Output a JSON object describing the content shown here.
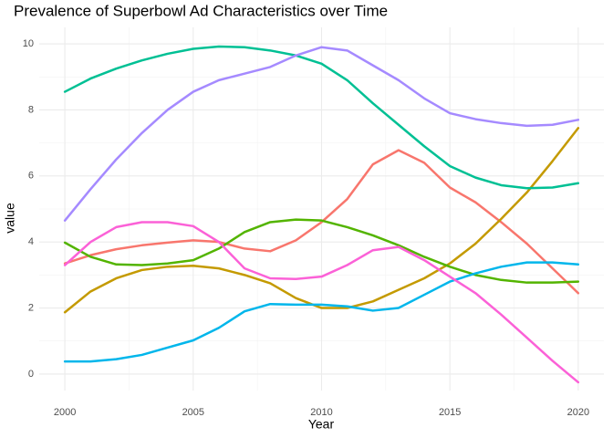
{
  "chart_data": {
    "type": "line",
    "title": "Prevalence of Superbowl Ad Characteristics over Time",
    "x_label": "Year",
    "y_label": "value",
    "x": [
      2000,
      2001,
      2002,
      2003,
      2004,
      2005,
      2006,
      2007,
      2008,
      2009,
      2010,
      2011,
      2012,
      2013,
      2014,
      2015,
      2016,
      2017,
      2018,
      2019,
      2020
    ],
    "xlim": [
      1999,
      2021
    ],
    "xticks": [
      2000,
      2005,
      2010,
      2015,
      2020
    ],
    "ylim": [
      -0.5,
      10.5
    ],
    "yticks": [
      0,
      2,
      4,
      6,
      8,
      10
    ],
    "grid": true,
    "series": [
      {
        "color": "#F8766D",
        "values": [
          3.35,
          3.6,
          3.78,
          3.9,
          3.98,
          4.05,
          4.0,
          3.8,
          3.72,
          4.05,
          4.6,
          5.3,
          6.35,
          6.78,
          6.4,
          5.65,
          5.2,
          4.6,
          3.95,
          3.2,
          2.45
        ]
      },
      {
        "color": "#C49A00",
        "values": [
          1.87,
          2.5,
          2.9,
          3.15,
          3.25,
          3.28,
          3.2,
          3.0,
          2.75,
          2.3,
          2.0,
          2.0,
          2.2,
          2.55,
          2.9,
          3.35,
          3.95,
          4.7,
          5.5,
          6.45,
          7.45
        ]
      },
      {
        "color": "#53B400",
        "values": [
          3.98,
          3.55,
          3.32,
          3.3,
          3.35,
          3.45,
          3.8,
          4.3,
          4.6,
          4.68,
          4.65,
          4.45,
          4.2,
          3.9,
          3.55,
          3.25,
          3.0,
          2.85,
          2.77,
          2.77,
          2.8
        ]
      },
      {
        "color": "#00C094",
        "values": [
          8.55,
          8.95,
          9.25,
          9.5,
          9.7,
          9.85,
          9.92,
          9.9,
          9.8,
          9.65,
          9.4,
          8.9,
          8.2,
          7.55,
          6.9,
          6.3,
          5.95,
          5.72,
          5.63,
          5.65,
          5.78
        ]
      },
      {
        "color": "#00B6EB",
        "values": [
          0.38,
          0.38,
          0.45,
          0.58,
          0.8,
          1.02,
          1.4,
          1.9,
          2.12,
          2.1,
          2.1,
          2.05,
          1.92,
          2.0,
          2.4,
          2.8,
          3.05,
          3.25,
          3.38,
          3.38,
          3.32
        ]
      },
      {
        "color": "#A58AFF",
        "values": [
          4.65,
          5.6,
          6.5,
          7.3,
          8.0,
          8.55,
          8.9,
          9.1,
          9.3,
          9.65,
          9.9,
          9.8,
          9.35,
          8.9,
          8.35,
          7.9,
          7.72,
          7.6,
          7.52,
          7.55,
          7.7
        ]
      },
      {
        "color": "#FB61D7",
        "values": [
          3.3,
          4.0,
          4.45,
          4.6,
          4.6,
          4.48,
          4.0,
          3.2,
          2.9,
          2.88,
          2.95,
          3.3,
          3.75,
          3.85,
          3.45,
          2.95,
          2.45,
          1.8,
          1.1,
          0.4,
          -0.25
        ]
      }
    ]
  }
}
